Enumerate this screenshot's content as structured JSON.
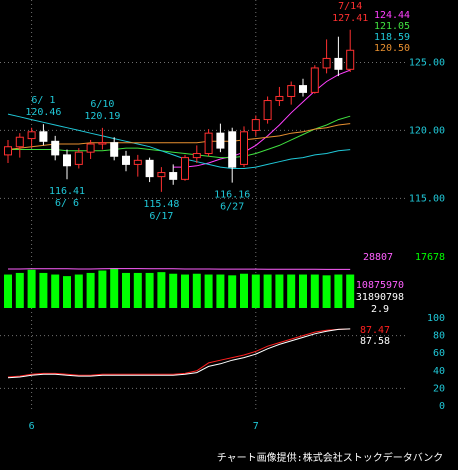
{
  "chart_data": [
    {
      "type": "candlestick",
      "ylim": [
        111.2,
        129.6
      ],
      "yticks": [
        {
          "value": 125,
          "label": "125.00"
        },
        {
          "value": 120,
          "label": "120.00"
        },
        {
          "value": 115,
          "label": "115.00"
        }
      ],
      "grid": true,
      "up_color": "#ff3030",
      "down_color": "#ffffff",
      "open": [
        118.2,
        118.8,
        119.4,
        119.9,
        119.2,
        118.2,
        117.5,
        118.4,
        119.0,
        119.1,
        118.1,
        117.5,
        117.8,
        116.6,
        116.9,
        116.4,
        118.0,
        118.3,
        119.8,
        119.9,
        117.5,
        120.0,
        120.8,
        122.2,
        122.5,
        123.3,
        122.8,
        124.6,
        125.3,
        124.5
      ],
      "high": [
        119.3,
        119.8,
        120.2,
        120.46,
        119.6,
        118.6,
        118.7,
        119.3,
        120.19,
        119.5,
        118.5,
        118.2,
        118.0,
        117.3,
        117.5,
        118.2,
        118.9,
        120.1,
        120.5,
        120.2,
        120.3,
        121.1,
        122.5,
        123.2,
        123.6,
        123.8,
        124.8,
        126.7,
        126.9,
        127.41
      ],
      "low": [
        117.6,
        118.0,
        118.7,
        118.9,
        117.8,
        116.41,
        117.2,
        117.9,
        118.6,
        117.8,
        117.0,
        116.6,
        116.2,
        115.48,
        116.0,
        116.3,
        117.6,
        118.1,
        118.4,
        116.16,
        117.3,
        119.6,
        120.5,
        121.8,
        121.9,
        122.5,
        122.7,
        124.2,
        124.0,
        124.3
      ],
      "close": [
        118.8,
        119.5,
        119.9,
        119.2,
        118.2,
        117.4,
        118.4,
        119.0,
        119.1,
        118.1,
        117.5,
        117.8,
        116.6,
        116.9,
        116.4,
        118.0,
        118.3,
        119.8,
        118.7,
        117.3,
        119.9,
        120.8,
        122.2,
        122.5,
        123.3,
        122.8,
        124.6,
        125.3,
        124.5,
        125.9
      ],
      "series": [
        {
          "color": "#ff40ff",
          "current": 124.44,
          "values": [
            null,
            null,
            null,
            null,
            null,
            null,
            null,
            null,
            null,
            null,
            null,
            null,
            null,
            null,
            117.3,
            117.3,
            117.4,
            117.6,
            117.9,
            118.1,
            118.4,
            118.9,
            119.6,
            120.4,
            121.3,
            122.1,
            122.9,
            123.6,
            124.1,
            124.44
          ]
        },
        {
          "color": "#40e040",
          "current": 121.05,
          "values": [
            118.6,
            118.6,
            118.6,
            118.6,
            118.6,
            118.5,
            118.5,
            118.5,
            118.5,
            118.6,
            118.7,
            118.7,
            118.6,
            118.5,
            118.4,
            118.3,
            118.2,
            118.1,
            118.0,
            118.0,
            118.1,
            118.3,
            118.6,
            118.9,
            119.3,
            119.7,
            120.1,
            120.4,
            120.8,
            121.05
          ]
        },
        {
          "color": "#20c8d8",
          "current": 118.59,
          "values": [
            121.2,
            121.0,
            120.8,
            120.6,
            120.4,
            120.2,
            120.0,
            119.8,
            119.6,
            119.4,
            119.2,
            119.0,
            118.8,
            118.5,
            118.2,
            117.9,
            117.7,
            117.5,
            117.3,
            117.2,
            117.2,
            117.3,
            117.5,
            117.7,
            117.9,
            118.0,
            118.2,
            118.3,
            118.5,
            118.59
          ]
        },
        {
          "color": "#e89030",
          "current": {
            "value": 120.5,
            "label": "120.50"
          },
          "values": [
            118.6,
            118.7,
            118.8,
            118.9,
            119.0,
            119.0,
            119.0,
            119.1,
            119.1,
            119.1,
            119.1,
            119.1,
            119.1,
            119.1,
            119.1,
            119.1,
            119.1,
            119.2,
            119.2,
            119.2,
            119.3,
            119.4,
            119.5,
            119.6,
            119.8,
            119.9,
            120.1,
            120.2,
            120.4,
            120.5
          ]
        }
      ],
      "annotations": [
        {
          "date": "6/ 1",
          "value": 120.46
        },
        {
          "date": "6/ 6",
          "value": 116.41
        },
        {
          "date": "6/10",
          "value": 120.19
        },
        {
          "date": "6/17",
          "value": 115.48
        },
        {
          "date": "6/27",
          "value": 116.16
        },
        {
          "date": "7/14",
          "value": 127.41,
          "color": "#ff3030"
        }
      ]
    },
    {
      "type": "bar",
      "ylim": [
        0,
        32000
      ],
      "color": "#00ff00",
      "values": [
        21000,
        22000,
        24000,
        22000,
        21000,
        20000,
        21000,
        22000,
        23500,
        25000,
        22000,
        22000,
        22000,
        22500,
        21500,
        21000,
        21500,
        21000,
        21000,
        20500,
        21500,
        21000,
        21000,
        21000,
        21000,
        21000,
        21000,
        20500,
        21000,
        21000
      ],
      "line": {
        "color": "#ff60ff",
        "values": [
          24500,
          24500,
          24600,
          24600,
          24600,
          24600,
          24500,
          24500,
          24600,
          24700,
          24700,
          24700,
          24600,
          24600,
          24600,
          24500,
          24500,
          24500,
          24400,
          24400,
          24400,
          24400,
          24300,
          24300,
          24300,
          24300,
          24300,
          24200,
          24200,
          24200
        ]
      },
      "readouts": [
        {
          "value": 28807,
          "color": "#ff60ff"
        },
        {
          "value": 17678,
          "color": "#00ff00"
        },
        {
          "value": 10875970,
          "color": "#ff60ff"
        },
        {
          "value": 31890798,
          "color": "#ffffff"
        },
        {
          "value": 2.9,
          "color": "#ffffff"
        }
      ]
    },
    {
      "type": "line",
      "categories": [
        null,
        null,
        "6",
        null,
        null,
        null,
        null,
        null,
        null,
        null,
        null,
        null,
        null,
        null,
        null,
        null,
        null,
        null,
        null,
        null,
        null,
        "7",
        null,
        null,
        null,
        null,
        null,
        null,
        null,
        null
      ],
      "ylim": [
        0,
        100
      ],
      "yticks": [
        100,
        80,
        60,
        40,
        20,
        0
      ],
      "grid_ticks": [
        80,
        20
      ],
      "series": [
        {
          "color": "#ff2020",
          "current": 87.47,
          "values": [
            33,
            34,
            36,
            37,
            37,
            36,
            35,
            35,
            36,
            36,
            36,
            36,
            36,
            36,
            36,
            37,
            40,
            49,
            52,
            55,
            58,
            62,
            68,
            72,
            76,
            80,
            84,
            86,
            87,
            87.47
          ]
        },
        {
          "color": "#ffffff",
          "current": 87.58,
          "values": [
            32,
            33,
            35,
            36,
            36,
            35,
            34,
            34,
            35,
            35,
            35,
            35,
            35,
            35,
            35,
            36,
            38,
            45,
            48,
            52,
            55,
            59,
            65,
            70,
            74,
            78,
            82,
            85,
            87,
            87.58
          ]
        }
      ]
    }
  ],
  "footer": "チャート画像提供:株式会社ストックデータバンク"
}
